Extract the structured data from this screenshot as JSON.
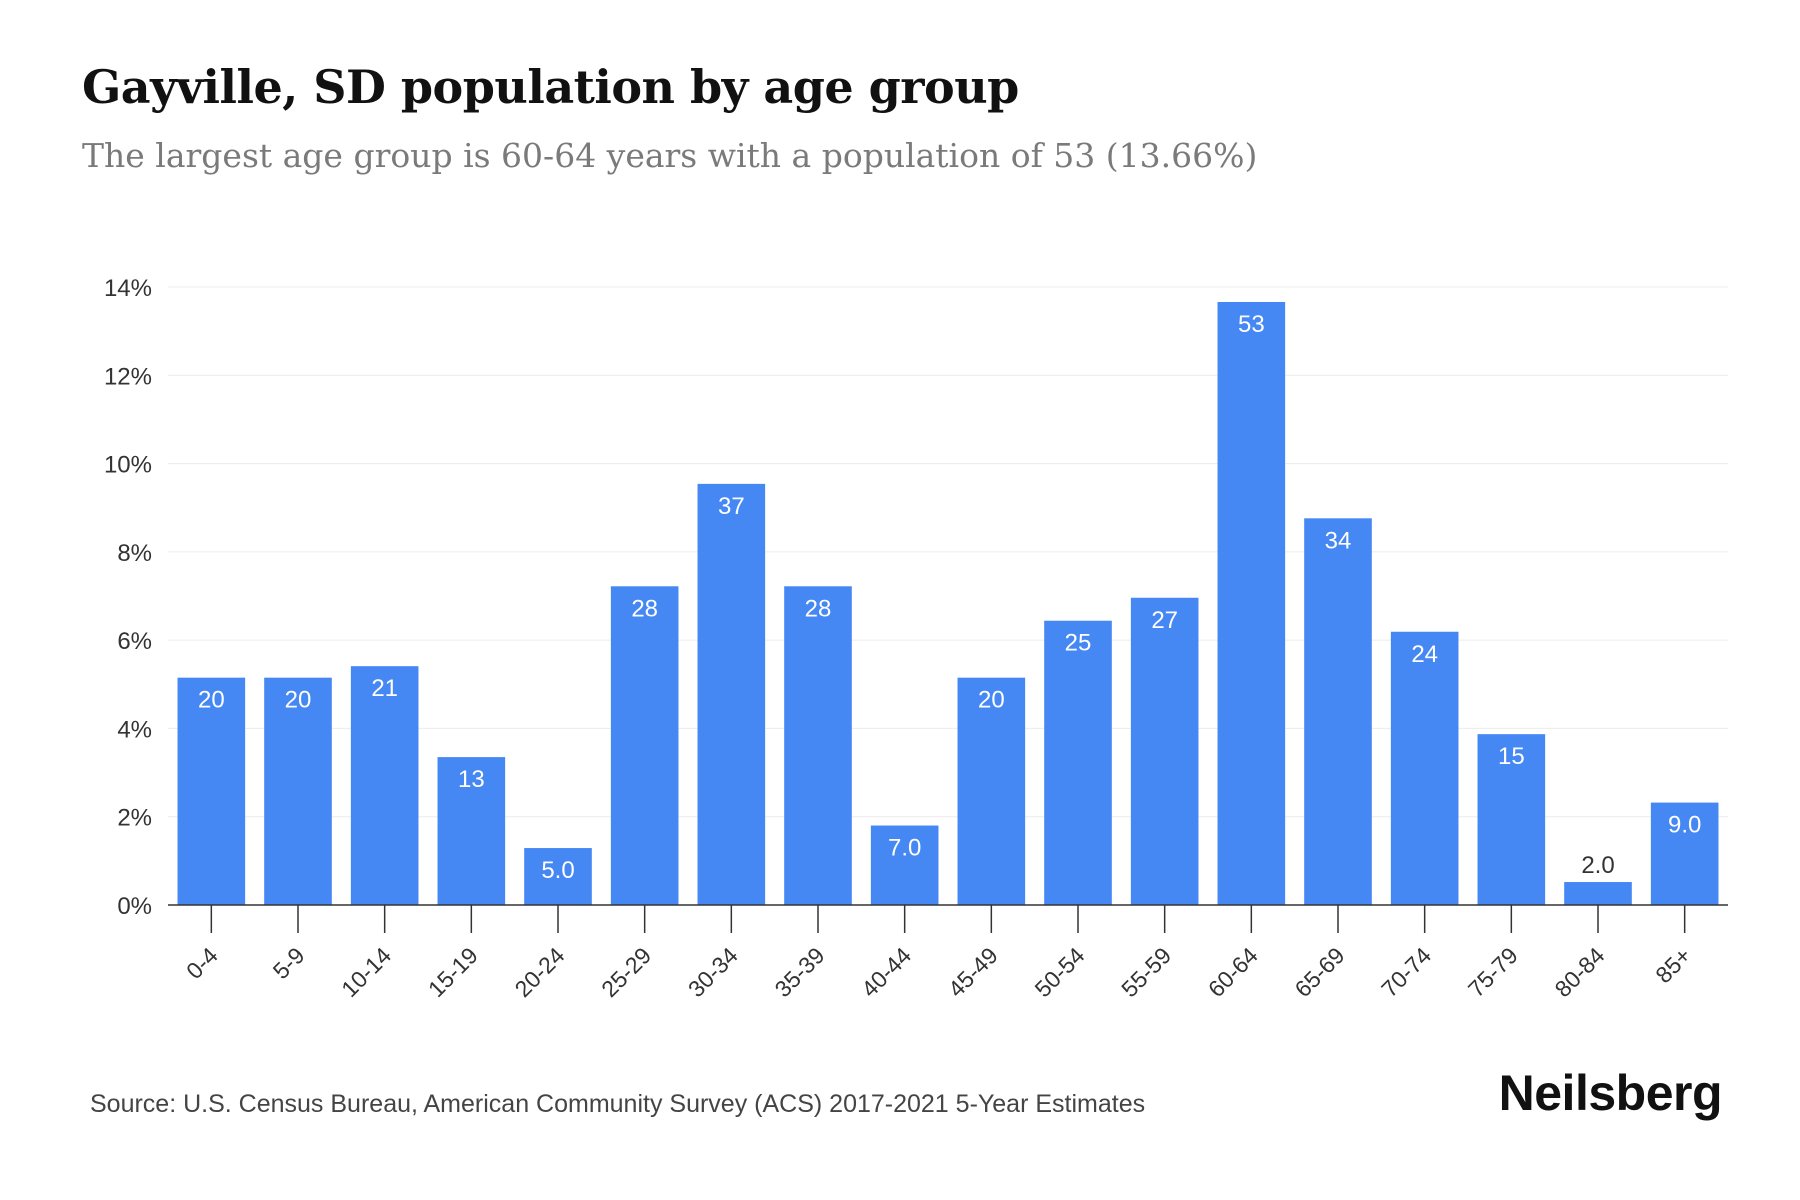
{
  "header": {
    "title": "Gayville, SD population by age group",
    "subtitle": "The largest age group is 60-64 years with a population of 53 (13.66%)"
  },
  "footer": {
    "source": "Source: U.S. Census Bureau, American Community Survey (ACS) 2017-2021 5-Year Estimates",
    "brand": "Neilsberg"
  },
  "colors": {
    "bar": "#4587f3",
    "grid": "#ececec",
    "axis": "#333333",
    "label_inside": "#ffffff",
    "label_outside": "#333333"
  },
  "chart_data": {
    "type": "bar",
    "title": "Gayville, SD population by age group",
    "subtitle": "The largest age group is 60-64 years with a population of 53 (13.66%)",
    "xlabel": "",
    "ylabel": "",
    "ylim": [
      0,
      14
    ],
    "yticks": [
      0,
      2,
      4,
      6,
      8,
      10,
      12,
      14
    ],
    "ytick_labels": [
      "0%",
      "2%",
      "4%",
      "6%",
      "8%",
      "10%",
      "12%",
      "14%"
    ],
    "grid": true,
    "categories": [
      "0-4",
      "5-9",
      "10-14",
      "15-19",
      "20-24",
      "25-29",
      "30-34",
      "35-39",
      "40-44",
      "45-49",
      "50-54",
      "55-59",
      "60-64",
      "65-69",
      "70-74",
      "75-79",
      "80-84",
      "85+"
    ],
    "values": [
      5.15,
      5.15,
      5.41,
      3.35,
      1.29,
      7.22,
      9.54,
      7.22,
      1.8,
      5.15,
      6.44,
      6.96,
      13.66,
      8.76,
      6.19,
      3.87,
      0.52,
      2.32
    ],
    "data_labels": [
      "20",
      "20",
      "21",
      "13",
      "5.0",
      "28",
      "37",
      "28",
      "7.0",
      "20",
      "25",
      "27",
      "53",
      "34",
      "24",
      "15",
      "2.0",
      "9.0"
    ]
  }
}
